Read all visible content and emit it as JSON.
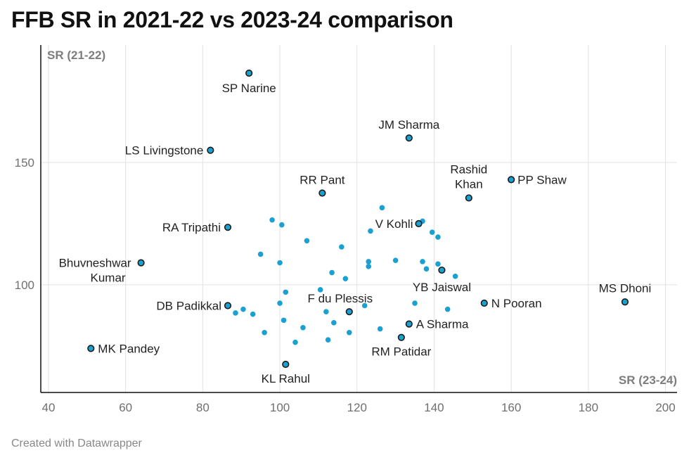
{
  "title": "FFB SR in 2021-22 vs 2023-24 comparison",
  "footer": "Created with Datawrapper",
  "colors": {
    "dot": "#1ba1d1",
    "dot_stroke": "#1a1a1a",
    "grid": "#e2e2e2",
    "axis": "#111111"
  },
  "chart_data": {
    "type": "scatter",
    "title": "FFB SR in 2021-22 vs 2023-24 comparison",
    "xlabel": "SR (23-24)",
    "ylabel": "SR (21-22)",
    "xlim": [
      38,
      203
    ],
    "ylim": [
      56,
      198
    ],
    "xticks": [
      40,
      60,
      80,
      100,
      120,
      140,
      160,
      180,
      200
    ],
    "yticks": [
      100,
      150
    ],
    "grid": true,
    "labeled_points": [
      {
        "name": "SP Narine",
        "x": 92,
        "y": 186.5
      },
      {
        "name": "JM Sharma",
        "x": 133.5,
        "y": 160
      },
      {
        "name": "LS Livingstone",
        "x": 82,
        "y": 155
      },
      {
        "name": "PP Shaw",
        "x": 160,
        "y": 143
      },
      {
        "name": "RR Pant",
        "x": 111,
        "y": 137.5
      },
      {
        "name": "Rashid Khan",
        "x": 149,
        "y": 135.5
      },
      {
        "name": "V Kohli",
        "x": 136,
        "y": 125
      },
      {
        "name": "RA Tripathi",
        "x": 86.5,
        "y": 123.5
      },
      {
        "name": "Bhuvneshwar Kumar",
        "x": 64,
        "y": 109
      },
      {
        "name": "YB Jaiswal",
        "x": 142,
        "y": 106
      },
      {
        "name": "MS Dhoni",
        "x": 189.5,
        "y": 93
      },
      {
        "name": "N Pooran",
        "x": 153,
        "y": 92.5
      },
      {
        "name": "DB Padikkal",
        "x": 86.5,
        "y": 91.5
      },
      {
        "name": "F du Plessis",
        "x": 118,
        "y": 89
      },
      {
        "name": "A Sharma",
        "x": 133.5,
        "y": 84
      },
      {
        "name": "RM Patidar",
        "x": 131.5,
        "y": 78.5
      },
      {
        "name": "MK Pandey",
        "x": 51,
        "y": 74
      },
      {
        "name": "KL Rahul",
        "x": 101.5,
        "y": 67.5
      }
    ],
    "other_points": [
      {
        "x": 126.5,
        "y": 131.5
      },
      {
        "x": 98,
        "y": 126.5
      },
      {
        "x": 100.5,
        "y": 124.5
      },
      {
        "x": 137,
        "y": 126
      },
      {
        "x": 123.5,
        "y": 122
      },
      {
        "x": 139.5,
        "y": 121.5
      },
      {
        "x": 141,
        "y": 119.5
      },
      {
        "x": 107,
        "y": 118
      },
      {
        "x": 116,
        "y": 115.5
      },
      {
        "x": 95,
        "y": 112.5
      },
      {
        "x": 130,
        "y": 110
      },
      {
        "x": 123,
        "y": 109.5
      },
      {
        "x": 137,
        "y": 109.5
      },
      {
        "x": 100,
        "y": 109
      },
      {
        "x": 141,
        "y": 108.5
      },
      {
        "x": 123,
        "y": 107.5
      },
      {
        "x": 138,
        "y": 106.5
      },
      {
        "x": 113.5,
        "y": 105
      },
      {
        "x": 145.5,
        "y": 103.5
      },
      {
        "x": 117,
        "y": 102.5
      },
      {
        "x": 110.5,
        "y": 98
      },
      {
        "x": 101.5,
        "y": 97
      },
      {
        "x": 100,
        "y": 92.5
      },
      {
        "x": 122,
        "y": 91.5
      },
      {
        "x": 135,
        "y": 92.5
      },
      {
        "x": 90.5,
        "y": 90
      },
      {
        "x": 143.5,
        "y": 90
      },
      {
        "x": 112,
        "y": 89
      },
      {
        "x": 88.5,
        "y": 88.5
      },
      {
        "x": 93,
        "y": 88
      },
      {
        "x": 101,
        "y": 85.5
      },
      {
        "x": 114,
        "y": 84.5
      },
      {
        "x": 106,
        "y": 82.5
      },
      {
        "x": 126,
        "y": 82
      },
      {
        "x": 96,
        "y": 80.5
      },
      {
        "x": 118,
        "y": 80.5
      },
      {
        "x": 112.5,
        "y": 77.5
      },
      {
        "x": 104,
        "y": 76.5
      }
    ]
  }
}
